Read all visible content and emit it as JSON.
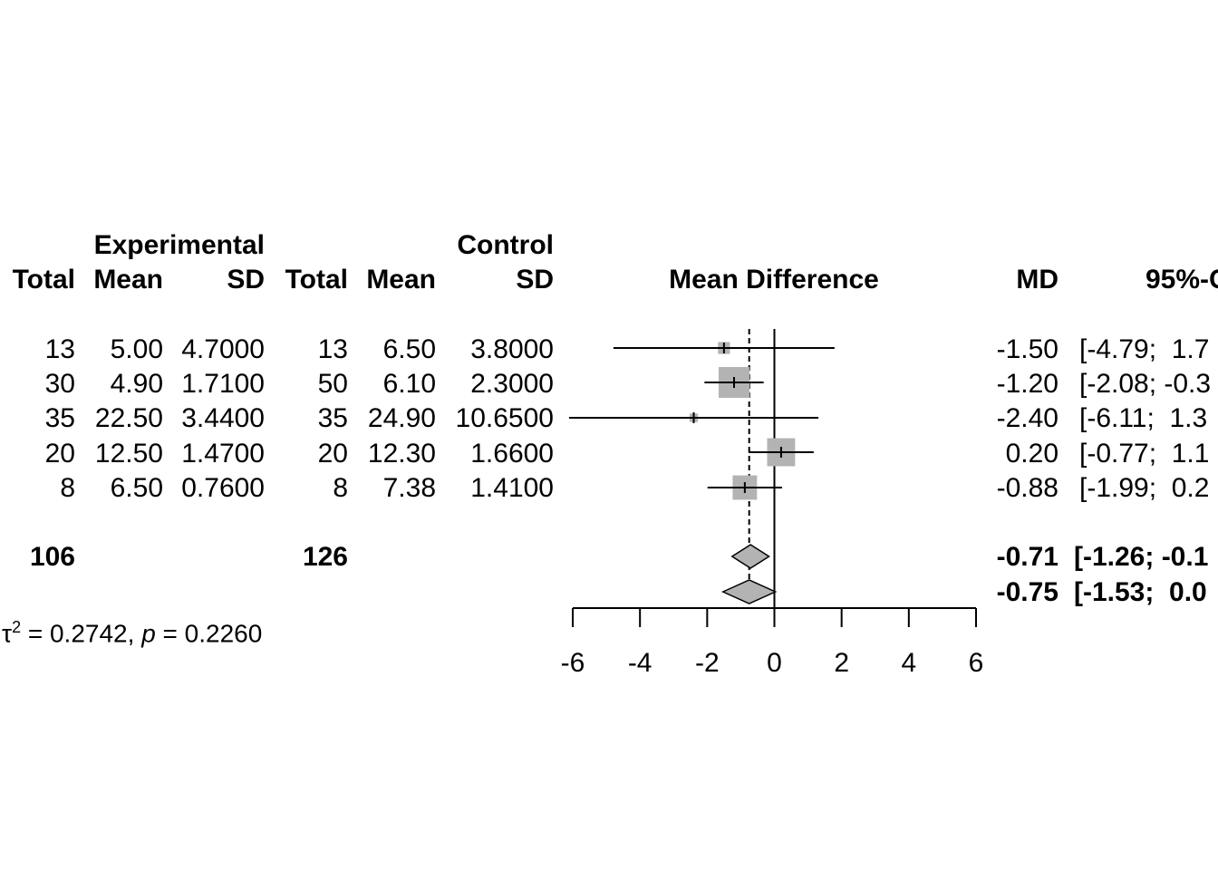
{
  "chart_data": {
    "type": "forest",
    "group_headers": {
      "experimental": "Experimental",
      "control": "Control"
    },
    "column_headers": {
      "exp_total": "Total",
      "exp_mean": "Mean",
      "exp_sd": "SD",
      "ctl_total": "Total",
      "ctl_mean": "Mean",
      "ctl_sd": "SD",
      "plot": "Mean Difference",
      "md": "MD",
      "ci": "95%-C"
    },
    "studies": [
      {
        "exp_total": "13",
        "exp_mean": "5.00",
        "exp_sd": "4.7000",
        "ctl_total": "13",
        "ctl_mean": "6.50",
        "ctl_sd": "3.8000",
        "md_text": "-1.50",
        "ci_text": "[-4.79;  1.7",
        "md": -1.5,
        "lower": -4.79,
        "upper": 1.79,
        "weight": 0.06
      },
      {
        "exp_total": "30",
        "exp_mean": "4.90",
        "exp_sd": "1.7100",
        "ctl_total": "50",
        "ctl_mean": "6.10",
        "ctl_sd": "2.3000",
        "md_text": "-1.20",
        "ci_text": "[-2.08; -0.3",
        "md": -1.2,
        "lower": -2.08,
        "upper": -0.32,
        "weight": 0.4
      },
      {
        "exp_total": "35",
        "exp_mean": "22.50",
        "exp_sd": "3.4400",
        "ctl_total": "35",
        "ctl_mean": "24.90",
        "ctl_sd": "10.6500",
        "md_text": "-2.40",
        "ci_text": "[-6.11;  1.3",
        "md": -2.4,
        "lower": -6.11,
        "upper": 1.31,
        "weight": 0.03
      },
      {
        "exp_total": "20",
        "exp_mean": "12.50",
        "exp_sd": "1.4700",
        "ctl_total": "20",
        "ctl_mean": "12.30",
        "ctl_sd": "1.6600",
        "md_text": "0.20",
        "ci_text": "[-0.77;  1.1",
        "md": 0.2,
        "lower": -0.77,
        "upper": 1.17,
        "weight": 0.33
      },
      {
        "exp_total": "8",
        "exp_mean": "6.50",
        "exp_sd": "0.7600",
        "ctl_total": "8",
        "ctl_mean": "7.38",
        "ctl_sd": "1.4100",
        "md_text": "-0.88",
        "ci_text": "[-1.99;  0.2",
        "md": -0.88,
        "lower": -1.99,
        "upper": 0.23,
        "weight": 0.25
      }
    ],
    "totals": {
      "exp_total": "106",
      "ctl_total": "126"
    },
    "pooled": [
      {
        "md_text": "-0.71",
        "ci_text": "[-1.26; -0.1",
        "md": -0.71,
        "lower": -1.26,
        "upper": -0.16
      },
      {
        "md_text": "-0.75",
        "ci_text": "[-1.53;  0.0",
        "md": -0.75,
        "lower": -1.53,
        "upper": 0.03
      }
    ],
    "heterogeneity": {
      "tau_symbol": "τ",
      "tau_exp": "2",
      "tau_rest": " = 0.2742, ",
      "p_symbol": "p",
      "p_rest": " = 0.2260"
    },
    "x_axis": {
      "range": [
        -6,
        6
      ],
      "ticks": [
        -6,
        -4,
        -2,
        0,
        2,
        4,
        6
      ],
      "tick_labels": [
        "-6",
        "-4",
        "-2",
        "0",
        "2",
        "4",
        "6"
      ]
    },
    "reference_value": 0,
    "pooled_reference": -0.75,
    "colors": {
      "square": "#b3b3b3",
      "diamond": "#b3b3b3",
      "line": "#000000"
    }
  }
}
